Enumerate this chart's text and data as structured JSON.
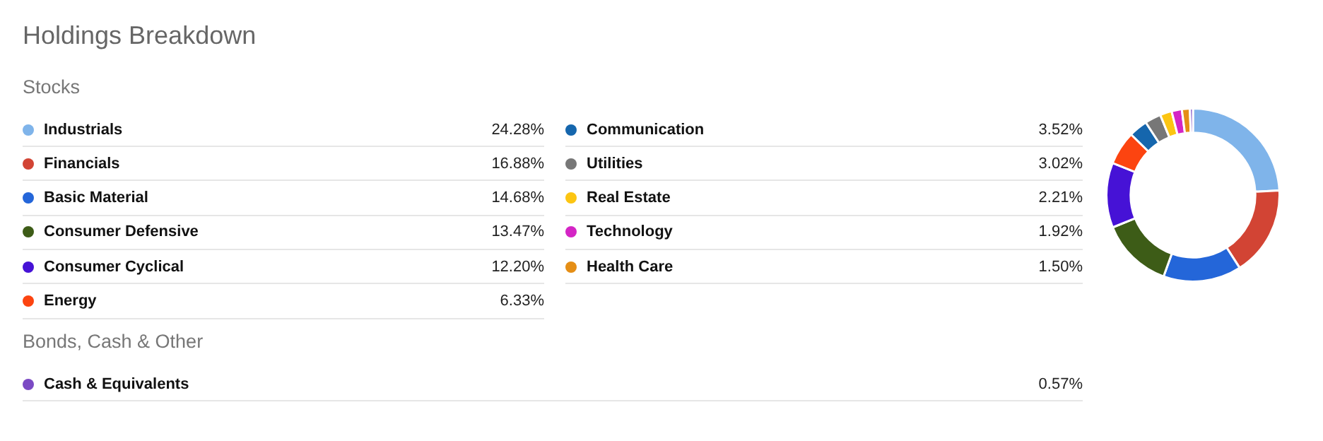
{
  "chart_data": {
    "type": "donut",
    "title": "Holdings Breakdown",
    "subtitle": "Stocks",
    "annotations": [
      "Bonds, Cash & Other"
    ],
    "legend": "left",
    "categories": [
      "Industrials",
      "Financials",
      "Basic Material",
      "Consumer Defensive",
      "Consumer Cyclical",
      "Energy",
      "Communication",
      "Utilities",
      "Real Estate",
      "Technology",
      "Health Care",
      "Cash & Equivalents"
    ],
    "values": [
      24.28,
      16.88,
      14.68,
      13.47,
      12.2,
      6.33,
      3.52,
      3.02,
      2.21,
      1.92,
      1.5,
      0.57
    ],
    "value_labels": [
      "24.28%",
      "16.88%",
      "14.68%",
      "13.47%",
      "12.20%",
      "6.33%",
      "3.52%",
      "3.02%",
      "2.21%",
      "1.92%",
      "1.50%",
      "0.57%"
    ],
    "colors": [
      "#7fb4ea",
      "#d24434",
      "#2466d9",
      "#3d5c17",
      "#4612d6",
      "#fc4410",
      "#1566ad",
      "#777777",
      "#fcc512",
      "#d425c5",
      "#e58e15",
      "#7b4ac4"
    ]
  }
}
